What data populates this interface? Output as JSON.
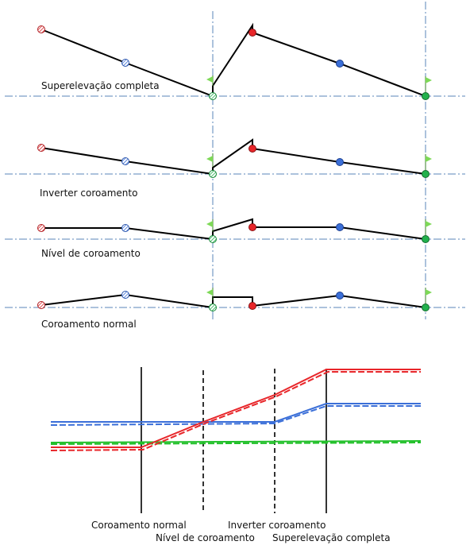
{
  "sections": [
    {
      "label": "Superelevação completa"
    },
    {
      "label": "Inverter coroamento"
    },
    {
      "label": "Nível de coroamento"
    },
    {
      "label": "Coroamento normal"
    }
  ],
  "transition_labels": {
    "normal": "Coroamento normal",
    "level": "Nível de coroamento",
    "invert": "Inverter coroamento",
    "full": "Superelevação completa"
  },
  "colors": {
    "left_edge": "#e8262a",
    "left_mid": "#3b6fd8",
    "right_edge": "#e8262a",
    "right_mid": "#3b6fd8",
    "centerline": "#22b14c",
    "profile_line": "#000000",
    "axis_line": "#5a86b8"
  },
  "icons": [
    "hatched-marker-icon",
    "flag-icon",
    "solid-marker-icon"
  ]
}
